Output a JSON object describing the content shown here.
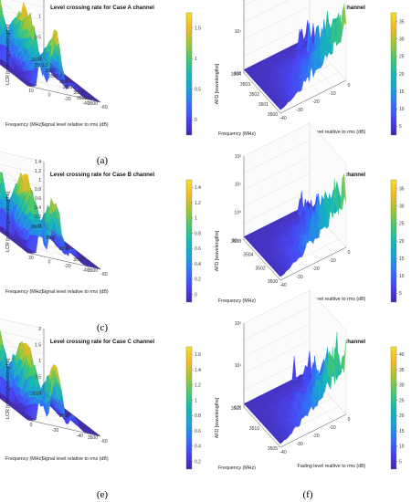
{
  "colormap": [
    "#3e26a8",
    "#4743f3",
    "#2f74f5",
    "#1aa0d8",
    "#18b9b1",
    "#48c76e",
    "#a2c535",
    "#efb82a",
    "#f9e11f"
  ],
  "chart_data": [
    {
      "type": "surface",
      "panel": "a",
      "caption": "(a)",
      "title": "Level crossing rate for Case A channel",
      "xlabel": "Signal level relative to rms (dB)",
      "ylabel": "Frequency (MHz)",
      "zlabel": "LCR [crossing/wavelengths]",
      "x_ticks": [
        "-60",
        "-40",
        "-20",
        "0",
        "10"
      ],
      "y_ticks": [
        "3500",
        "3500.5",
        "3501",
        "3501.5",
        "3502",
        "3502.5",
        "3503",
        "3503.5",
        "3504"
      ],
      "z_ticks": [
        "0",
        "0.5",
        "1",
        "1.5"
      ],
      "colorbar_ticks": [
        "0",
        "0.5",
        "1",
        "1.5"
      ],
      "xlim": [
        -60,
        10
      ],
      "ylim": [
        3500,
        3504
      ],
      "zlim": [
        0,
        1.5
      ]
    },
    {
      "type": "surface",
      "panel": "b",
      "caption": "(b)",
      "title": "Average fade durations for Case A channel",
      "xlabel": "Fading level realtive to rms (dB)",
      "ylabel": "Frequency (MHz)",
      "zlabel": "AFD [wavelengths]",
      "x_ticks": [
        "-40",
        "-30",
        "-20",
        "-10",
        "0"
      ],
      "y_ticks": [
        "3500",
        "3501",
        "3502",
        "3503",
        "3504"
      ],
      "z_ticks": [
        "10^0",
        "10^1",
        "10^2"
      ],
      "colorbar_ticks": [
        "5",
        "10",
        "15",
        "20",
        "25",
        "30",
        "35"
      ],
      "zscale": "log",
      "xlim": [
        -40,
        0
      ],
      "ylim": [
        3500,
        3504
      ]
    },
    {
      "type": "surface",
      "panel": "c",
      "caption": "(c)",
      "title": "Level crossing rate for Case B channel",
      "xlabel": "Signal level relative to rms (dB)",
      "ylabel": "Frequency (MHz)",
      "zlabel": "LCR [crossing/wavelengths]",
      "x_ticks": [
        "-60",
        "-40",
        "-20",
        "0",
        "20"
      ],
      "y_ticks": [
        "3500",
        "3502",
        "3504",
        "3506",
        "3508"
      ],
      "z_ticks": [
        "0",
        "0.2",
        "0.4",
        "0.6",
        "0.8",
        "1",
        "1.2",
        "1.4"
      ],
      "colorbar_ticks": [
        "0",
        "0.2",
        "0.4",
        "0.6",
        "0.8",
        "1",
        "1.2",
        "1.4"
      ],
      "xlim": [
        -60,
        20
      ],
      "ylim": [
        3500,
        3508
      ],
      "zlim": [
        0,
        1.4
      ]
    },
    {
      "type": "surface",
      "panel": "d",
      "caption": "(d)",
      "title": "Average fade durations for Case B channel",
      "xlabel": "Fading level realtive to rms (dB)",
      "ylabel": "Frequency (MHz)",
      "zlabel": "AFD [wavelengths]",
      "x_ticks": [
        "-40",
        "-30",
        "-20",
        "-10",
        "0"
      ],
      "y_ticks": [
        "3500",
        "3502",
        "3504",
        "3506"
      ],
      "z_ticks": [
        "10^-1",
        "10^0",
        "10^1",
        "10^2"
      ],
      "colorbar_ticks": [
        "5",
        "10",
        "15",
        "20",
        "25",
        "30",
        "35"
      ],
      "zscale": "log",
      "xlim": [
        -40,
        0
      ],
      "ylim": [
        3500,
        3506
      ]
    },
    {
      "type": "surface",
      "panel": "e",
      "caption": "(e)",
      "title": "Level crossing rate for Case C channel",
      "xlabel": "Signal level relative to rms (dB)",
      "ylabel": "Frequency (MHz)",
      "zlabel": "LCR [crossing/wavelengths]",
      "x_ticks": [
        "-60",
        "-40",
        "-20",
        "0"
      ],
      "y_ticks": [
        "3500",
        "3505",
        "3510"
      ],
      "z_ticks": [
        "0",
        "0.5",
        "1",
        "1.5",
        "2"
      ],
      "colorbar_ticks": [
        "0.2",
        "0.4",
        "0.6",
        "0.8",
        "1",
        "1.2",
        "1.4",
        "1.6"
      ],
      "xlim": [
        -60,
        0
      ],
      "ylim": [
        3500,
        3510
      ],
      "zlim": [
        0,
        2
      ]
    },
    {
      "type": "surface",
      "panel": "f",
      "caption": "(f)",
      "title": "Average fade durations for Case C channel",
      "xlabel": "Fading level realtive to rms (dB)",
      "ylabel": "Frequency (MHz)",
      "zlabel": "AFD [wavelengths]",
      "x_ticks": [
        "-40",
        "-30",
        "-20",
        "-10",
        "0"
      ],
      "y_ticks": [
        "3505",
        "3510",
        "3515"
      ],
      "z_ticks": [
        "10^0",
        "10^1",
        "10^2"
      ],
      "colorbar_ticks": [
        "5",
        "10",
        "15",
        "20",
        "25",
        "30",
        "35",
        "40"
      ],
      "zscale": "log",
      "xlim": [
        -40,
        0
      ],
      "ylim": [
        3505,
        3515
      ]
    }
  ]
}
